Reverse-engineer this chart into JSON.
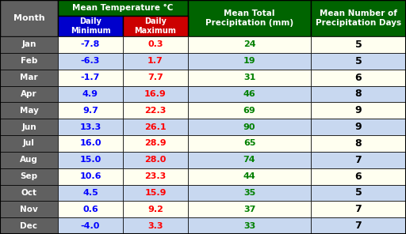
{
  "months": [
    "Jan",
    "Feb",
    "Mar",
    "Apr",
    "May",
    "Jun",
    "Jul",
    "Aug",
    "Sep",
    "Oct",
    "Nov",
    "Dec"
  ],
  "daily_min": [
    -7.8,
    -6.3,
    -1.7,
    4.9,
    9.7,
    13.3,
    16.0,
    15.0,
    10.6,
    4.5,
    0.6,
    -4.0
  ],
  "daily_max": [
    0.3,
    1.7,
    7.7,
    16.9,
    22.3,
    26.1,
    28.9,
    28.0,
    23.3,
    15.9,
    9.2,
    3.3
  ],
  "precipitation_mm": [
    24,
    19,
    31,
    46,
    69,
    90,
    65,
    74,
    44,
    35,
    37,
    33
  ],
  "precipitation_days": [
    5,
    5,
    6,
    8,
    9,
    9,
    8,
    7,
    6,
    5,
    7,
    7
  ],
  "header_bg": "#006400",
  "subheader_min_bg": "#0000CC",
  "subheader_max_bg": "#CC0000",
  "row_bg_odd": "#FFFFF0",
  "row_bg_even": "#C8D8F0",
  "month_col_bg": "#606060",
  "month_text_color": "#FFFFFF",
  "min_text_color": "#0000FF",
  "max_text_color": "#FF0000",
  "precip_text_color": "#008000",
  "days_text_color": "#000000",
  "header_text_color": "#FFFFFF",
  "col_header_precip_bg": "#006400",
  "col_header_days_bg": "#006400",
  "grid_color": "#000000",
  "fig_bg": "#000000"
}
